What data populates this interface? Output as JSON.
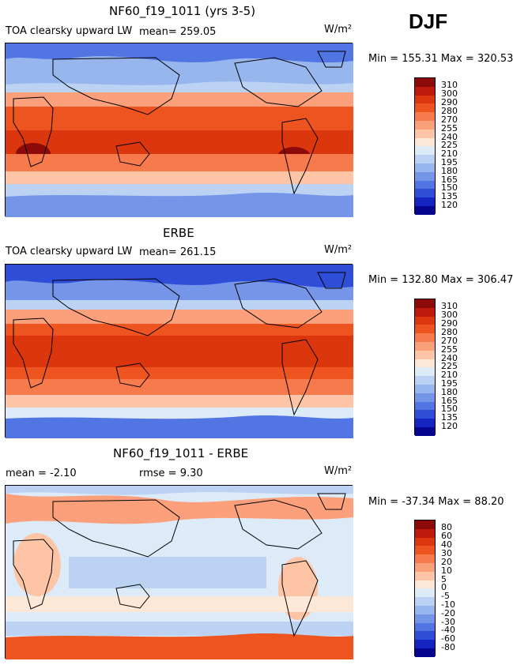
{
  "season": "DJF",
  "panels": [
    {
      "title": "NF60_f19_1011 (yrs 3-5)",
      "variable": "TOA clearsky upward LW",
      "mean_text": "mean= 259.05",
      "units": "W/m²",
      "min_max": "Min = 155.31  Max = 320.53",
      "contours": [
        "310",
        "300",
        "290",
        "280",
        "270",
        "255",
        "240",
        "225",
        "210",
        "195",
        "180",
        "165",
        "150",
        "135",
        "120"
      ]
    },
    {
      "title": "ERBE",
      "variable": "TOA clearsky upward LW",
      "mean_text": "mean= 261.15",
      "units": "W/m²",
      "min_max": "Min = 132.80  Max = 306.47",
      "contours": [
        "310",
        "300",
        "290",
        "280",
        "270",
        "255",
        "240",
        "225",
        "210",
        "195",
        "180",
        "165",
        "150",
        "135",
        "120"
      ]
    },
    {
      "title": "NF60_f19_1011 - ERBE",
      "variable": "mean =  -2.10",
      "mean_text": "rmse =   9.30",
      "units": "W/m²",
      "min_max": "Min = -37.34  Max =  88.20",
      "contours": [
        "80",
        "60",
        "40",
        "30",
        "20",
        "10",
        "5",
        "0",
        "-5",
        "-10",
        "-20",
        "-30",
        "-40",
        "-60",
        "-80"
      ]
    }
  ],
  "colors": {
    "palette": [
      "#8c0a0a",
      "#bd1a0d",
      "#dc360f",
      "#ed5420",
      "#f67a4b",
      "#fba07a",
      "#fdc5a6",
      "#fde8d8",
      "#ddeaf8",
      "#bcd2f3",
      "#98b6ee",
      "#7595e8",
      "#5275e4",
      "#2e4ed8",
      "#1424c0",
      "#04048e"
    ]
  }
}
